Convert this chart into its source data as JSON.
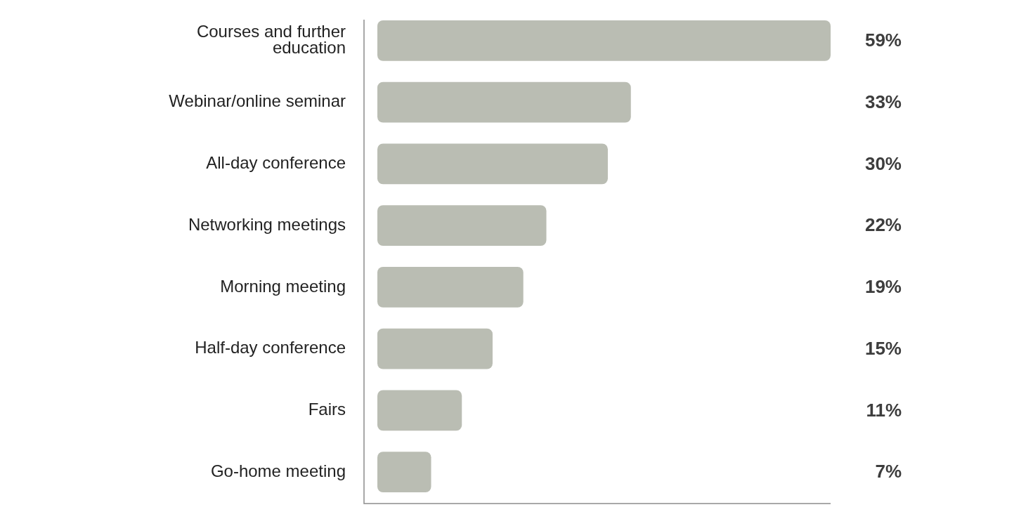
{
  "chart_data": {
    "type": "bar",
    "orientation": "horizontal",
    "categories": [
      "Courses and further education",
      "Webinar/online seminar",
      "All-day conference",
      "Networking meetings",
      "Morning meeting",
      "Half-day conference",
      "Fairs",
      "Go-home meeting"
    ],
    "values": [
      59,
      33,
      30,
      22,
      19,
      15,
      11,
      7
    ],
    "value_labels": [
      "59%",
      "33%",
      "30%",
      "22%",
      "19%",
      "15%",
      "11%",
      "7%"
    ],
    "color": "#babdb3",
    "xlim": [
      0,
      59
    ]
  }
}
